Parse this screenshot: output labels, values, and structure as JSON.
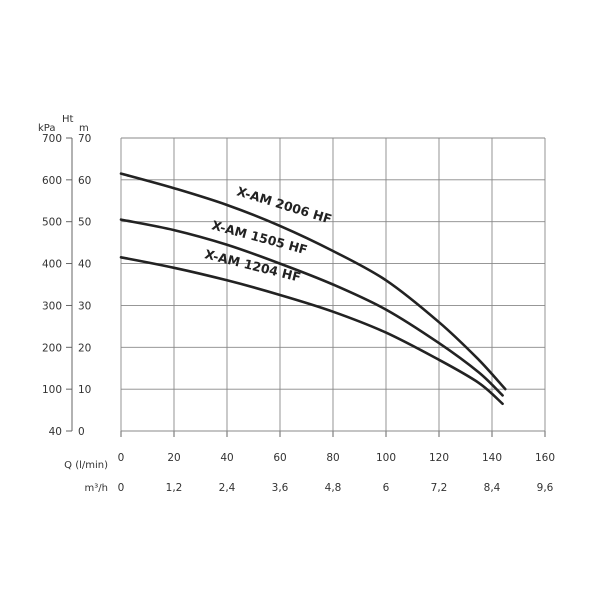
{
  "chart_data": {
    "type": "line",
    "xlabel": "Q (l/min)",
    "xlabel2": "m³/h",
    "y_left_outer_unit": "kPa",
    "y_left_inner_unit_top": "Ht",
    "y_left_inner_unit": "m",
    "xlim": [
      0,
      160
    ],
    "ylim": [
      0,
      70
    ],
    "x_ticks": [
      "0",
      "20",
      "40",
      "60",
      "80",
      "100",
      "120",
      "140",
      "160"
    ],
    "x2_ticks": [
      "0",
      "1,2",
      "2,4",
      "3,6",
      "4,8",
      "6",
      "7,2",
      "8,4",
      "9,6"
    ],
    "y_ticks_m": [
      "0",
      "10",
      "20",
      "30",
      "40",
      "50",
      "60",
      "70"
    ],
    "y_ticks_kpa": [
      "40",
      "100",
      "200",
      "300",
      "400",
      "500",
      "600",
      "700"
    ],
    "grid": true,
    "series": [
      {
        "name": "X-AM 2006 HF",
        "x": [
          0,
          20,
          40,
          60,
          80,
          100,
          120,
          135,
          145
        ],
        "values": [
          61.5,
          58,
          54,
          49,
          43,
          36,
          26,
          17,
          10
        ]
      },
      {
        "name": "X-AM 1505 HF",
        "x": [
          0,
          20,
          40,
          60,
          80,
          100,
          120,
          135,
          144
        ],
        "values": [
          50.5,
          48,
          44.5,
          40,
          35,
          29,
          21,
          14,
          8.5
        ]
      },
      {
        "name": "X-AM 1204 HF",
        "x": [
          0,
          20,
          40,
          60,
          80,
          100,
          120,
          135,
          144
        ],
        "values": [
          41.5,
          39,
          36,
          32.5,
          28.5,
          23.5,
          17,
          11.5,
          6.5
        ]
      }
    ]
  },
  "colors": {
    "curve": "#222222",
    "grid": "#888888",
    "axis": "#555555",
    "text": "#333333"
  }
}
